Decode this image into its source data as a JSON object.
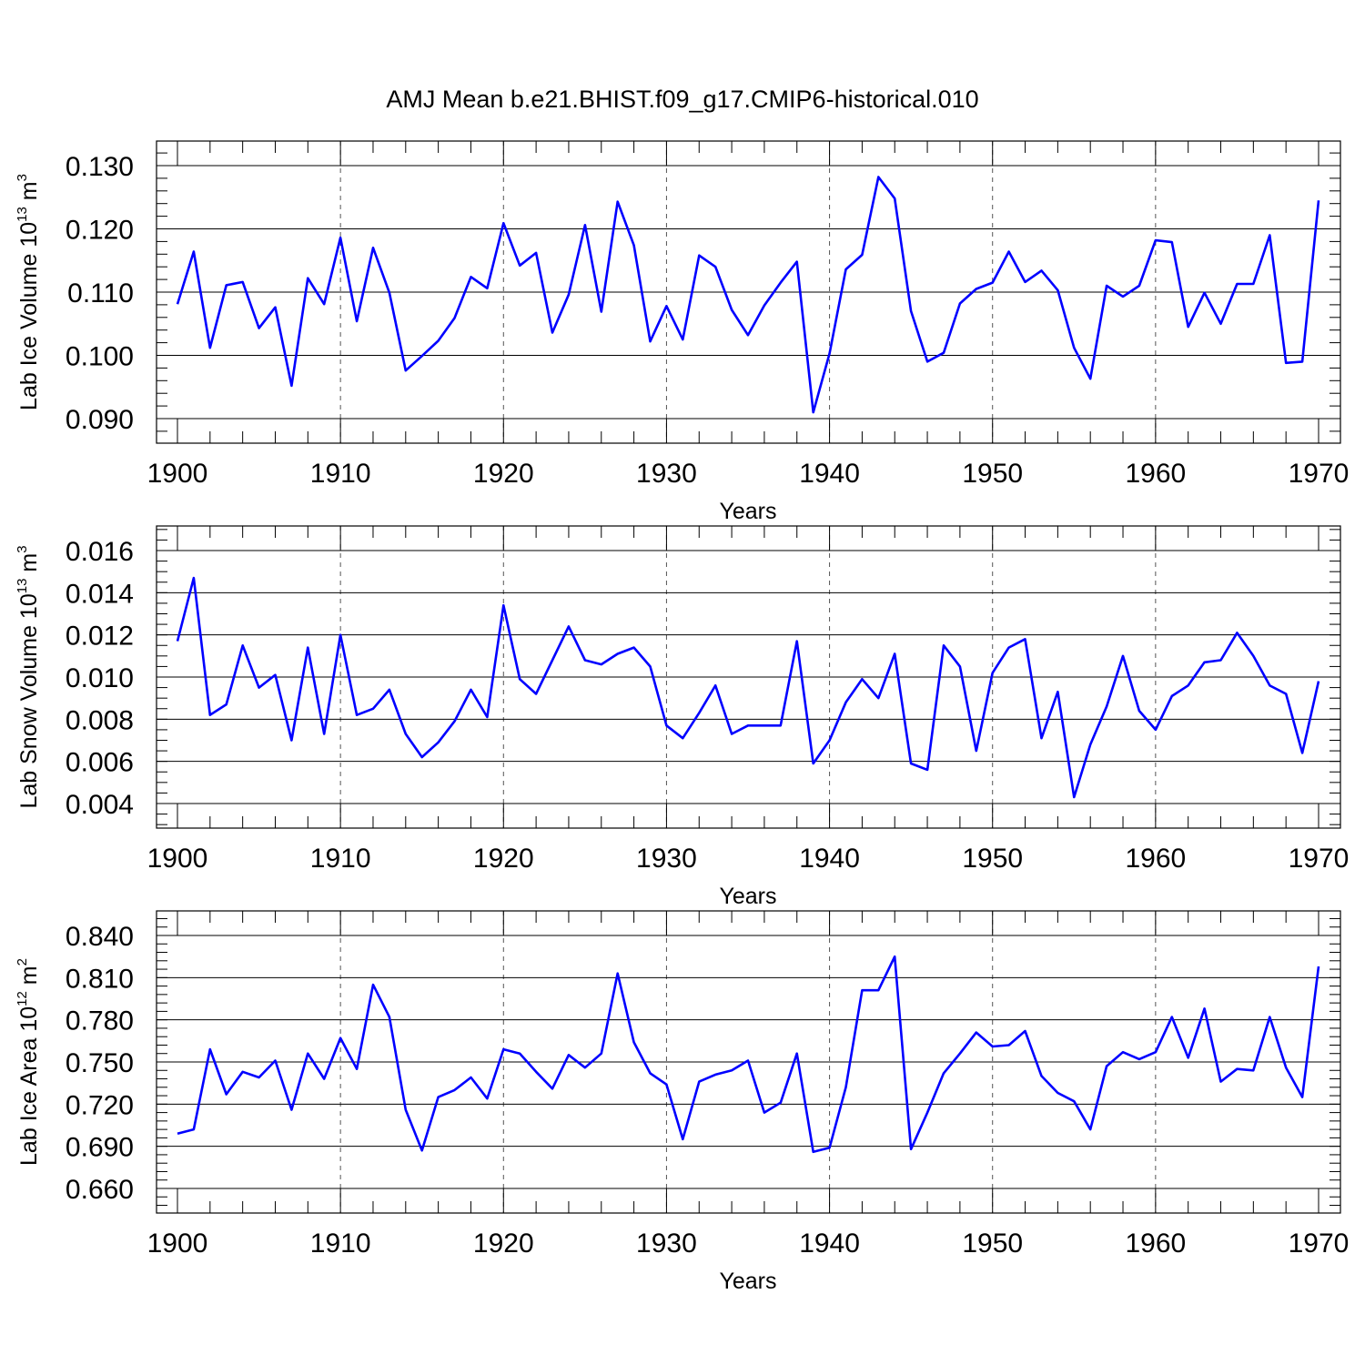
{
  "figure_title": "AMJ Mean b.e21.BHIST.f09_g17.CMIP6-historical.010",
  "colors": {
    "line": "#0000ff",
    "axis": "#000000",
    "grid": "#555555"
  },
  "chart_data": [
    {
      "type": "line",
      "ylabel": {
        "prefix": "Lab Ice Volume 10",
        "exp": "13",
        "unit": " m",
        "unit_exp": "3"
      },
      "xlabel": "Years",
      "xlim": [
        1900,
        1970
      ],
      "ylim": [
        0.086,
        0.134
      ],
      "x_ticks": [
        1900,
        1910,
        1920,
        1930,
        1940,
        1950,
        1960,
        1970
      ],
      "x_tick_labels": [
        "1900",
        "1910",
        "1920",
        "1930",
        "1940",
        "1950",
        "1960",
        "1970"
      ],
      "y_ticks": [
        0.09,
        0.1,
        0.11,
        0.12,
        0.13
      ],
      "y_tick_labels": [
        "0.090",
        "0.100",
        "0.110",
        "0.120",
        "0.130"
      ],
      "y_minor_step": 0.002,
      "x": [
        1900,
        1901,
        1902,
        1903,
        1904,
        1905,
        1906,
        1907,
        1908,
        1909,
        1910,
        1911,
        1912,
        1913,
        1914,
        1915,
        1916,
        1917,
        1918,
        1919,
        1920,
        1921,
        1922,
        1923,
        1924,
        1925,
        1926,
        1927,
        1928,
        1929,
        1930,
        1931,
        1932,
        1933,
        1934,
        1935,
        1936,
        1937,
        1938,
        1939,
        1940,
        1941,
        1942,
        1943,
        1944,
        1945,
        1946,
        1947,
        1948,
        1949,
        1950,
        1951,
        1952,
        1953,
        1954,
        1955,
        1956,
        1957,
        1958,
        1959,
        1960,
        1961,
        1962,
        1963,
        1964,
        1965,
        1966,
        1967,
        1968,
        1969,
        1970
      ],
      "values": [
        0.1081,
        0.1164,
        0.1012,
        0.1111,
        0.1116,
        0.1043,
        0.1076,
        0.0952,
        0.1122,
        0.1081,
        0.1186,
        0.1054,
        0.117,
        0.1099,
        0.0976,
        0.0999,
        0.1023,
        0.1059,
        0.1124,
        0.1106,
        0.1209,
        0.1142,
        0.1162,
        0.1036,
        0.1096,
        0.1206,
        0.1069,
        0.1243,
        0.1174,
        0.1022,
        0.1078,
        0.1025,
        0.1158,
        0.114,
        0.1072,
        0.1032,
        0.1079,
        0.1115,
        0.1148,
        0.091,
        0.1003,
        0.1136,
        0.1159,
        0.1282,
        0.1248,
        0.107,
        0.099,
        0.1004,
        0.1082,
        0.1105,
        0.1115,
        0.1164,
        0.1116,
        0.1134,
        0.1103,
        0.1012,
        0.0963,
        0.111,
        0.1093,
        0.111,
        0.1182,
        0.1179,
        0.1045,
        0.1099,
        0.105,
        0.1113,
        0.1113,
        0.119,
        0.0988,
        0.099,
        0.1245
      ]
    },
    {
      "type": "line",
      "ylabel": {
        "prefix": "Lab Snow Volume 10",
        "exp": "13",
        "unit": " m",
        "unit_exp": "3"
      },
      "xlabel": "Years",
      "xlim": [
        1900,
        1970
      ],
      "ylim": [
        0.0028,
        0.0172
      ],
      "x_ticks": [
        1900,
        1910,
        1920,
        1930,
        1940,
        1950,
        1960,
        1970
      ],
      "x_tick_labels": [
        "1900",
        "1910",
        "1920",
        "1930",
        "1940",
        "1950",
        "1960",
        "1970"
      ],
      "y_ticks": [
        0.004,
        0.006,
        0.008,
        0.01,
        0.012,
        0.014,
        0.016
      ],
      "y_tick_labels": [
        "0.004",
        "0.006",
        "0.008",
        "0.010",
        "0.012",
        "0.014",
        "0.016"
      ],
      "y_minor_step": 0.0005,
      "x": [
        1900,
        1901,
        1902,
        1903,
        1904,
        1905,
        1906,
        1907,
        1908,
        1909,
        1910,
        1911,
        1912,
        1913,
        1914,
        1915,
        1916,
        1917,
        1918,
        1919,
        1920,
        1921,
        1922,
        1923,
        1924,
        1925,
        1926,
        1927,
        1928,
        1929,
        1930,
        1931,
        1932,
        1933,
        1934,
        1935,
        1936,
        1937,
        1938,
        1939,
        1940,
        1941,
        1942,
        1943,
        1944,
        1945,
        1946,
        1947,
        1948,
        1949,
        1950,
        1951,
        1952,
        1953,
        1954,
        1955,
        1956,
        1957,
        1958,
        1959,
        1960,
        1961,
        1962,
        1963,
        1964,
        1965,
        1966,
        1967,
        1968,
        1969,
        1970
      ],
      "values": [
        0.0117,
        0.0147,
        0.0082,
        0.0087,
        0.0115,
        0.0095,
        0.0101,
        0.007,
        0.0114,
        0.0073,
        0.012,
        0.0082,
        0.0085,
        0.0094,
        0.0073,
        0.0062,
        0.0069,
        0.0079,
        0.0094,
        0.0081,
        0.0134,
        0.0099,
        0.0092,
        0.0108,
        0.0124,
        0.0108,
        0.0106,
        0.0111,
        0.0114,
        0.0105,
        0.0077,
        0.0071,
        0.0083,
        0.0096,
        0.0073,
        0.0077,
        0.0077,
        0.0077,
        0.0117,
        0.0059,
        0.007,
        0.0088,
        0.0099,
        0.009,
        0.0111,
        0.0059,
        0.0056,
        0.0115,
        0.0105,
        0.0065,
        0.0102,
        0.0114,
        0.0118,
        0.0071,
        0.0093,
        0.0043,
        0.0068,
        0.0086,
        0.011,
        0.0084,
        0.0075,
        0.0091,
        0.0096,
        0.0107,
        0.0108,
        0.0121,
        0.011,
        0.0096,
        0.0092,
        0.0064,
        0.0098
      ]
    },
    {
      "type": "line",
      "ylabel": {
        "prefix": "Lab Ice Area 10",
        "exp": "12",
        "unit": " m",
        "unit_exp": "2"
      },
      "xlabel": "Years",
      "xlim": [
        1900,
        1970
      ],
      "ylim": [
        0.648,
        0.852
      ],
      "x_ticks": [
        1900,
        1910,
        1920,
        1930,
        1940,
        1950,
        1960,
        1970
      ],
      "x_tick_labels": [
        "1900",
        "1910",
        "1920",
        "1930",
        "1940",
        "1950",
        "1960",
        "1970"
      ],
      "y_ticks": [
        0.66,
        0.69,
        0.72,
        0.75,
        0.78,
        0.81,
        0.84
      ],
      "y_tick_labels": [
        "0.660",
        "0.690",
        "0.720",
        "0.750",
        "0.780",
        "0.810",
        "0.840"
      ],
      "y_minor_step": 0.006,
      "x": [
        1900,
        1901,
        1902,
        1903,
        1904,
        1905,
        1906,
        1907,
        1908,
        1909,
        1910,
        1911,
        1912,
        1913,
        1914,
        1915,
        1916,
        1917,
        1918,
        1919,
        1920,
        1921,
        1922,
        1923,
        1924,
        1925,
        1926,
        1927,
        1928,
        1929,
        1930,
        1931,
        1932,
        1933,
        1934,
        1935,
        1936,
        1937,
        1938,
        1939,
        1940,
        1941,
        1942,
        1943,
        1944,
        1945,
        1946,
        1947,
        1948,
        1949,
        1950,
        1951,
        1952,
        1953,
        1954,
        1955,
        1956,
        1957,
        1958,
        1959,
        1960,
        1961,
        1962,
        1963,
        1964,
        1965,
        1966,
        1967,
        1968,
        1969,
        1970
      ],
      "values": [
        0.699,
        0.702,
        0.759,
        0.727,
        0.743,
        0.739,
        0.751,
        0.716,
        0.756,
        0.738,
        0.767,
        0.745,
        0.805,
        0.782,
        0.716,
        0.687,
        0.725,
        0.73,
        0.739,
        0.724,
        0.759,
        0.756,
        0.743,
        0.731,
        0.755,
        0.746,
        0.756,
        0.813,
        0.764,
        0.742,
        0.734,
        0.695,
        0.736,
        0.741,
        0.744,
        0.751,
        0.714,
        0.721,
        0.756,
        0.686,
        0.689,
        0.732,
        0.801,
        0.801,
        0.825,
        0.688,
        0.714,
        0.742,
        0.756,
        0.771,
        0.761,
        0.762,
        0.772,
        0.74,
        0.728,
        0.722,
        0.702,
        0.747,
        0.757,
        0.752,
        0.757,
        0.782,
        0.753,
        0.788,
        0.736,
        0.745,
        0.744,
        0.782,
        0.746,
        0.725,
        0.818
      ]
    }
  ]
}
